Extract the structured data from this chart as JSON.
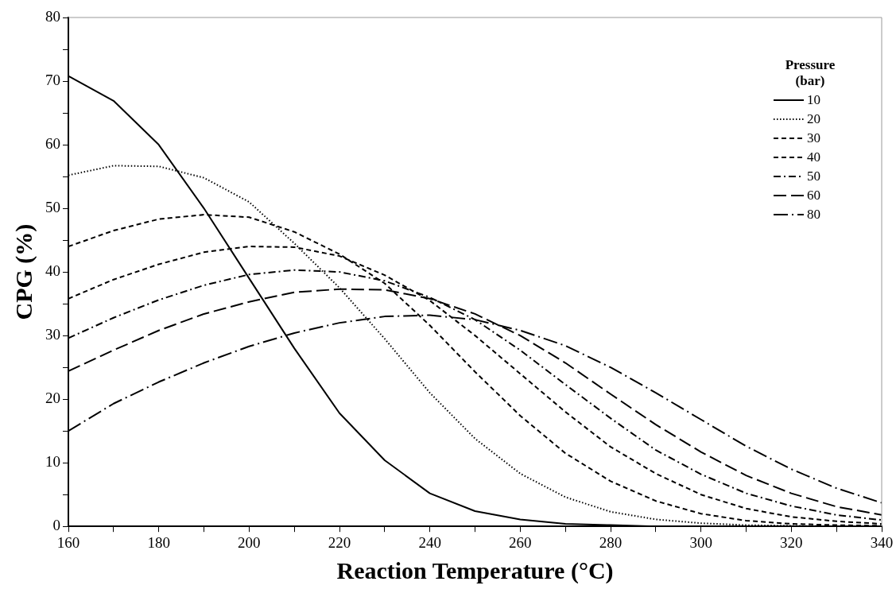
{
  "chart_data": {
    "type": "line",
    "xlabel": "Reaction Temperature (°C)",
    "ylabel": "CPG (%)",
    "legend_title": "Pressure (bar)",
    "legend": "top right",
    "grid": false,
    "marker": "none",
    "x": [
      160,
      170,
      180,
      190,
      200,
      210,
      220,
      230,
      240,
      250,
      260,
      270,
      280,
      290,
      300,
      310,
      320,
      330,
      340
    ],
    "xlim": [
      160,
      340
    ],
    "ylim": [
      0,
      80
    ],
    "xticks": [
      160,
      {
        "value": 170,
        "label": null
      },
      180,
      {
        "value": 190,
        "label": null
      },
      200,
      {
        "value": 210,
        "label": null
      },
      220,
      {
        "value": 230,
        "label": null
      },
      240,
      {
        "value": 250,
        "label": null
      },
      260,
      {
        "value": 270,
        "label": null
      },
      280,
      {
        "value": 290,
        "label": null
      },
      300,
      {
        "value": 310,
        "label": null
      },
      320,
      {
        "value": 330,
        "label": null
      },
      340
    ],
    "yticks": [
      0,
      {
        "value": 5,
        "label": null
      },
      10,
      {
        "value": 15,
        "label": null
      },
      20,
      {
        "value": 25,
        "label": null
      },
      30,
      {
        "value": 35,
        "label": null
      },
      40,
      {
        "value": 45,
        "label": null
      },
      50,
      {
        "value": 55,
        "label": null
      },
      60,
      {
        "value": 65,
        "label": null
      },
      70,
      {
        "value": 75,
        "label": null
      },
      80
    ],
    "series": [
      {
        "name": "10",
        "color": "#000000",
        "line_style": "solid",
        "values": [
          70.8,
          66.9,
          60,
          50,
          39,
          28,
          17.8,
          10.4,
          5.2,
          2.4,
          1.1,
          0.4,
          0.2,
          0,
          0,
          0,
          0,
          0,
          0
        ]
      },
      {
        "name": "20",
        "color": "#000000",
        "line_style": "dotted",
        "values": [
          55.2,
          56.7,
          56.6,
          54.8,
          51,
          44.5,
          37.5,
          29.5,
          21,
          13.8,
          8.3,
          4.6,
          2.3,
          1.1,
          0.5,
          0.2,
          0.1,
          0,
          0
        ]
      },
      {
        "name": "30",
        "color": "#000000",
        "line_style": "dashed",
        "values": [
          44,
          46.5,
          48.3,
          49,
          48.6,
          46.3,
          42.8,
          38.2,
          31.6,
          24.3,
          17.4,
          11.5,
          7.1,
          4,
          2,
          0.9,
          0.4,
          0.2,
          0.1
        ]
      },
      {
        "name": "40",
        "color": "#000000",
        "line_style": "dashed",
        "values": [
          35.8,
          38.8,
          41.2,
          43.1,
          44,
          43.9,
          42.5,
          39.5,
          35.5,
          30,
          24,
          18,
          12.5,
          8.3,
          5,
          2.8,
          1.5,
          0.8,
          0.4
        ]
      },
      {
        "name": "50",
        "color": "#000000",
        "line_style": "dashdot",
        "values": [
          29.6,
          32.8,
          35.6,
          37.9,
          39.6,
          40.3,
          40,
          38.6,
          36,
          32.5,
          27.7,
          22.3,
          17,
          12,
          8.2,
          5.2,
          3.2,
          1.8,
          1
        ]
      },
      {
        "name": "60",
        "color": "#000000",
        "line_style": "longdash",
        "values": [
          24.4,
          27.7,
          30.8,
          33.4,
          35.3,
          36.8,
          37.3,
          37.2,
          35.8,
          33.4,
          30,
          25.7,
          20.8,
          16,
          11.7,
          8,
          5.2,
          3.1,
          1.8
        ]
      },
      {
        "name": "80",
        "color": "#000000",
        "line_style": "longdashdot",
        "values": [
          15,
          19.3,
          22.7,
          25.7,
          28.3,
          30.4,
          32,
          33,
          33.2,
          32.5,
          30.8,
          28.4,
          25,
          21,
          16.8,
          12.6,
          9,
          6,
          3.7
        ]
      }
    ]
  }
}
